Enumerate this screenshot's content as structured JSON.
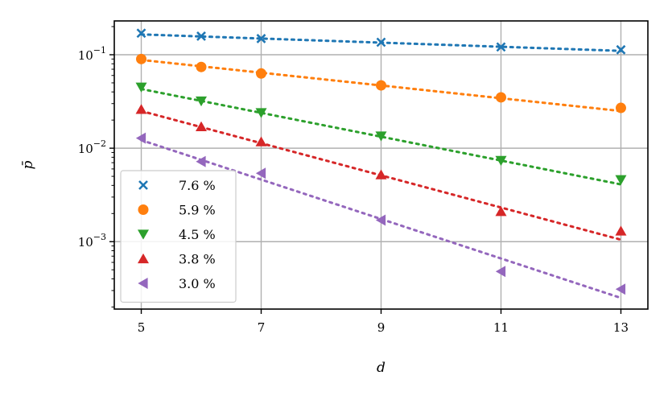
{
  "chart_data": {
    "type": "scatter",
    "xlabel": "d",
    "ylabel": "p̄",
    "xlim": [
      4.55,
      13.45
    ],
    "ylim": [
      0.00019,
      0.23
    ],
    "yscale": "log",
    "grid": true,
    "legend_position": "lower-left",
    "x_ticks": [
      5,
      7,
      9,
      11,
      13
    ],
    "x_tick_labels": [
      "5",
      "7",
      "9",
      "11",
      "13"
    ],
    "y_ticks": [
      0.1,
      0.01,
      0.001
    ],
    "y_tick_bases": [
      "10",
      "10",
      "10"
    ],
    "y_tick_exps": [
      "−1",
      "−2",
      "−3"
    ],
    "series": [
      {
        "name": "7.6 %",
        "color": "#1f77b4",
        "marker": "x",
        "x": [
          5,
          6,
          7,
          9,
          11,
          13
        ],
        "y": [
          0.17,
          0.158,
          0.149,
          0.136,
          0.121,
          0.113
        ],
        "fit": [
          [
            5,
            0.165
          ],
          [
            13,
            0.11
          ]
        ]
      },
      {
        "name": "5.9 %",
        "color": "#ff7f0e",
        "marker": "circle",
        "x": [
          5,
          6,
          7,
          9,
          11,
          13
        ],
        "y": [
          0.09,
          0.074,
          0.063,
          0.047,
          0.035,
          0.027
        ],
        "fit": [
          [
            5,
            0.088
          ],
          [
            13,
            0.025
          ]
        ]
      },
      {
        "name": "4.5 %",
        "color": "#2ca02c",
        "marker": "triangle-down",
        "x": [
          5,
          6,
          7,
          9,
          11,
          13
        ],
        "y": [
          0.045,
          0.032,
          0.024,
          0.0135,
          0.0074,
          0.0046
        ],
        "fit": [
          [
            5,
            0.043
          ],
          [
            13,
            0.0041
          ]
        ]
      },
      {
        "name": "3.8 %",
        "color": "#d62728",
        "marker": "triangle-up",
        "x": [
          5,
          6,
          7,
          9,
          11,
          13
        ],
        "y": [
          0.026,
          0.017,
          0.0117,
          0.0052,
          0.0021,
          0.0013
        ],
        "fit": [
          [
            5,
            0.025
          ],
          [
            13,
            0.00105
          ]
        ]
      },
      {
        "name": "3.0 %",
        "color": "#9467bd",
        "marker": "triangle-left",
        "x": [
          5,
          6,
          7,
          9,
          11,
          13
        ],
        "y": [
          0.0128,
          0.0072,
          0.0054,
          0.0017,
          0.00048,
          0.00031
        ],
        "fit": [
          [
            5,
            0.0122
          ],
          [
            13,
            0.00025
          ]
        ]
      }
    ]
  }
}
